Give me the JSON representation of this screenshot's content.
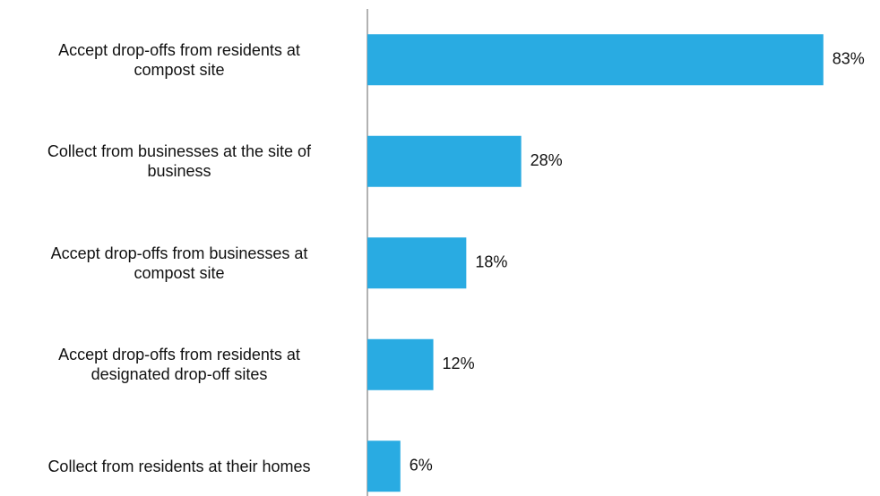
{
  "chart_data": {
    "type": "bar",
    "orientation": "horizontal",
    "categories": [
      "Accept drop-offs from residents at\ncompost site",
      "Collect from businesses at the site of\nbusiness",
      "Accept drop-offs from businesses at\ncompost site",
      "Accept drop-offs from residents at\ndesignated drop-off sites",
      "Collect from residents at their homes"
    ],
    "values": [
      83,
      28,
      18,
      12,
      6
    ],
    "value_labels": [
      "83%",
      "28%",
      "18%",
      "12%",
      "6%"
    ],
    "color": "#29abe2",
    "xlim": [
      0,
      100
    ]
  }
}
